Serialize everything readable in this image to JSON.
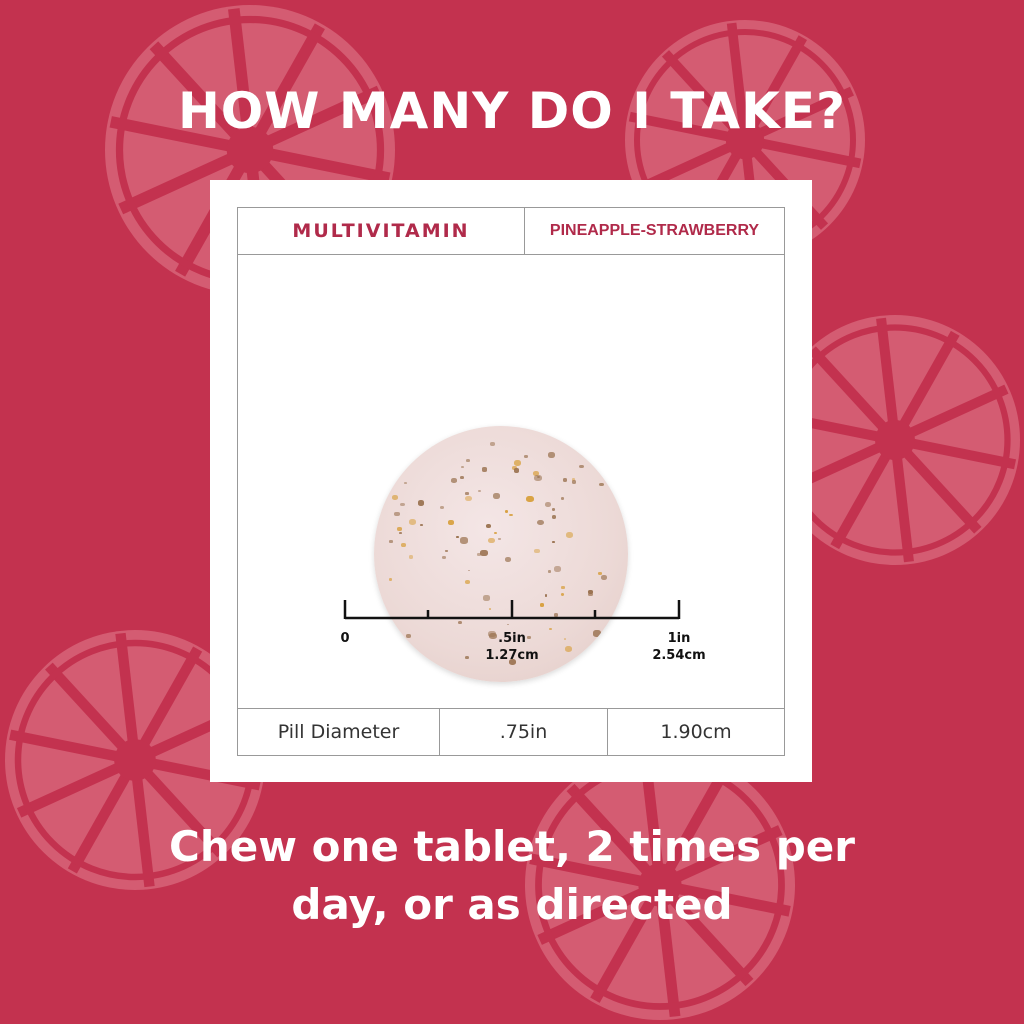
{
  "colors": {
    "background": "#c3324f",
    "accent": "#b02a4a",
    "pattern": "#d45c72"
  },
  "title": "HOW MANY DO I TAKE?",
  "card": {
    "product": "MULTIVITAMIN",
    "flavor": "PINEAPPLE-STRAWBERRY",
    "ruler": {
      "zero": "0",
      "half_in": ".5in",
      "half_cm": "1.27cm",
      "one_in": "1in",
      "one_cm": "2.54cm"
    },
    "size_row": {
      "label": "Pill Diameter",
      "inches": ".75in",
      "cm": "1.90cm"
    }
  },
  "instructions": {
    "line1": "Chew one tablet, 2 times per",
    "line2": "day, or as directed"
  }
}
